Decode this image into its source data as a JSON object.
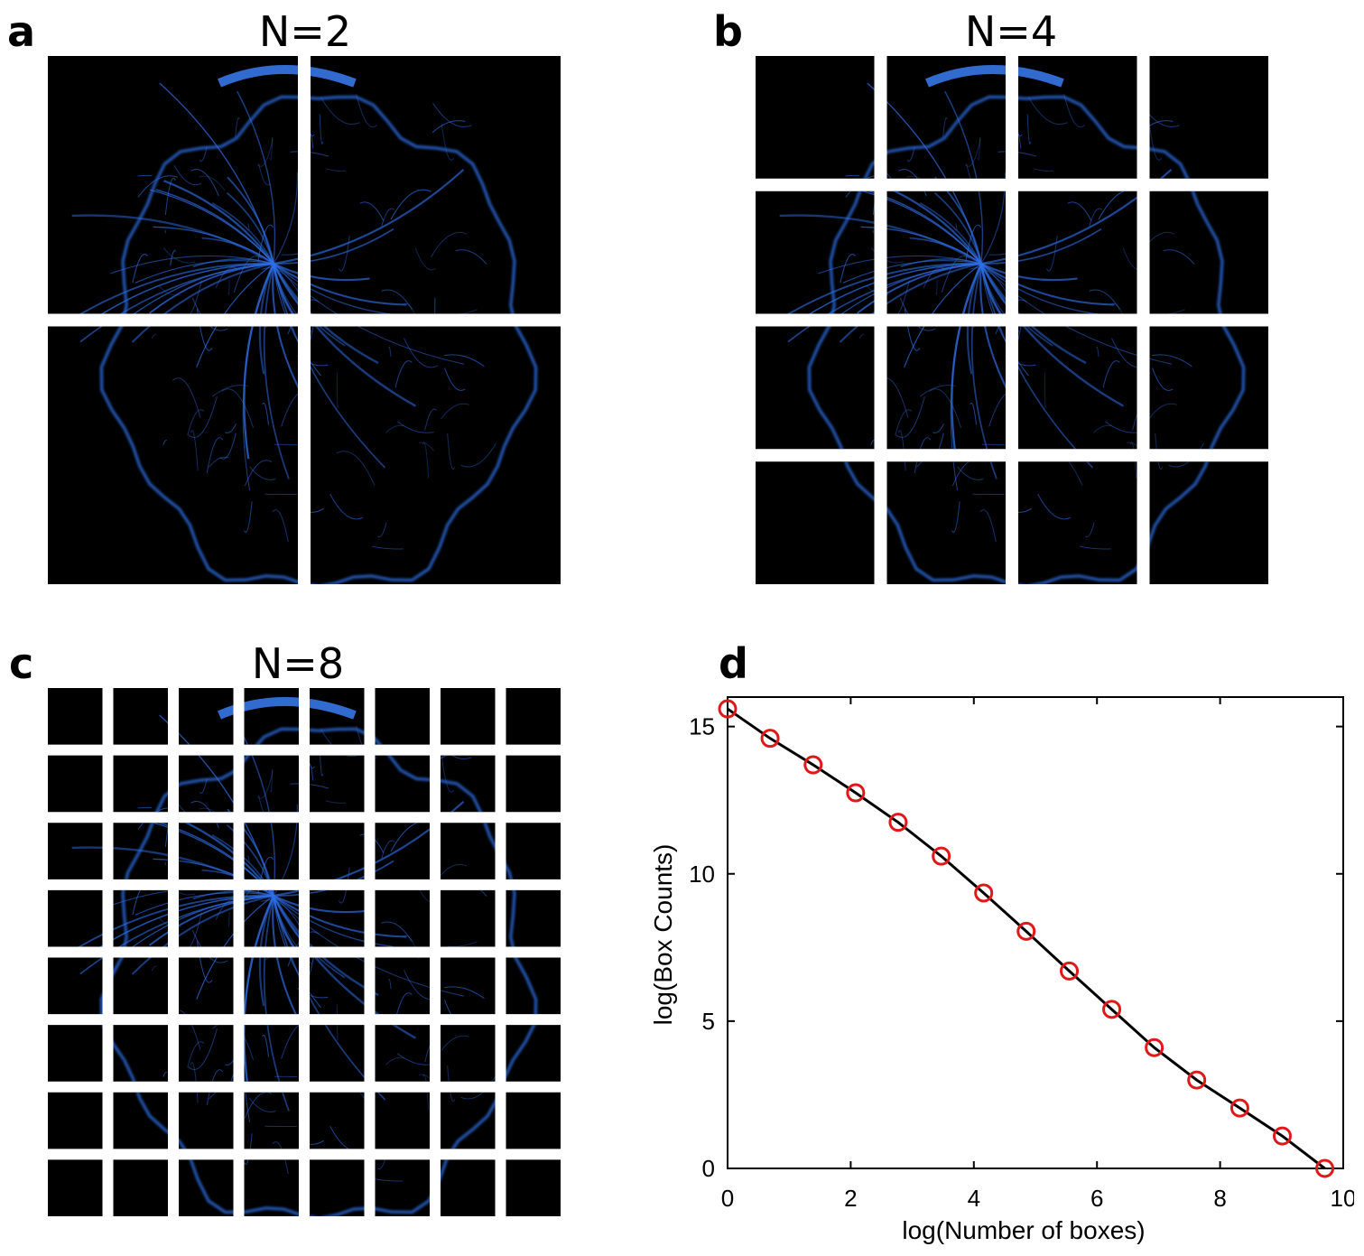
{
  "panels": [
    {
      "letter": "a",
      "title": "N=2",
      "n": 2
    },
    {
      "letter": "b",
      "title": "N=4",
      "n": 4
    },
    {
      "letter": "c",
      "title": "N=8",
      "n": 8
    },
    {
      "letter": "d"
    }
  ],
  "colors": {
    "background_tile": "#000000",
    "vessel_signal": "#2f6fe8",
    "line": "#000000",
    "marker": "#e01818"
  },
  "chart_data": {
    "type": "line",
    "xlabel": "log(Number of boxes)",
    "ylabel": "log(Box Counts)",
    "xlim": [
      0,
      10
    ],
    "ylim": [
      0,
      16
    ],
    "xticks": [
      "0",
      "2",
      "4",
      "6",
      "8",
      "10"
    ],
    "yticks": [
      "0",
      "5",
      "10",
      "15"
    ],
    "grid": false,
    "series": [
      {
        "x": [
          0,
          0.69,
          1.39,
          2.08,
          2.77,
          3.47,
          4.16,
          4.85,
          5.55,
          6.24,
          6.93,
          7.62,
          8.32,
          9.01,
          9.7
        ],
        "y": [
          15.6,
          14.6,
          13.7,
          12.75,
          11.75,
          10.6,
          9.35,
          8.05,
          6.7,
          5.4,
          4.1,
          3.0,
          2.05,
          1.1,
          0.0
        ],
        "marker": "circle"
      }
    ]
  }
}
